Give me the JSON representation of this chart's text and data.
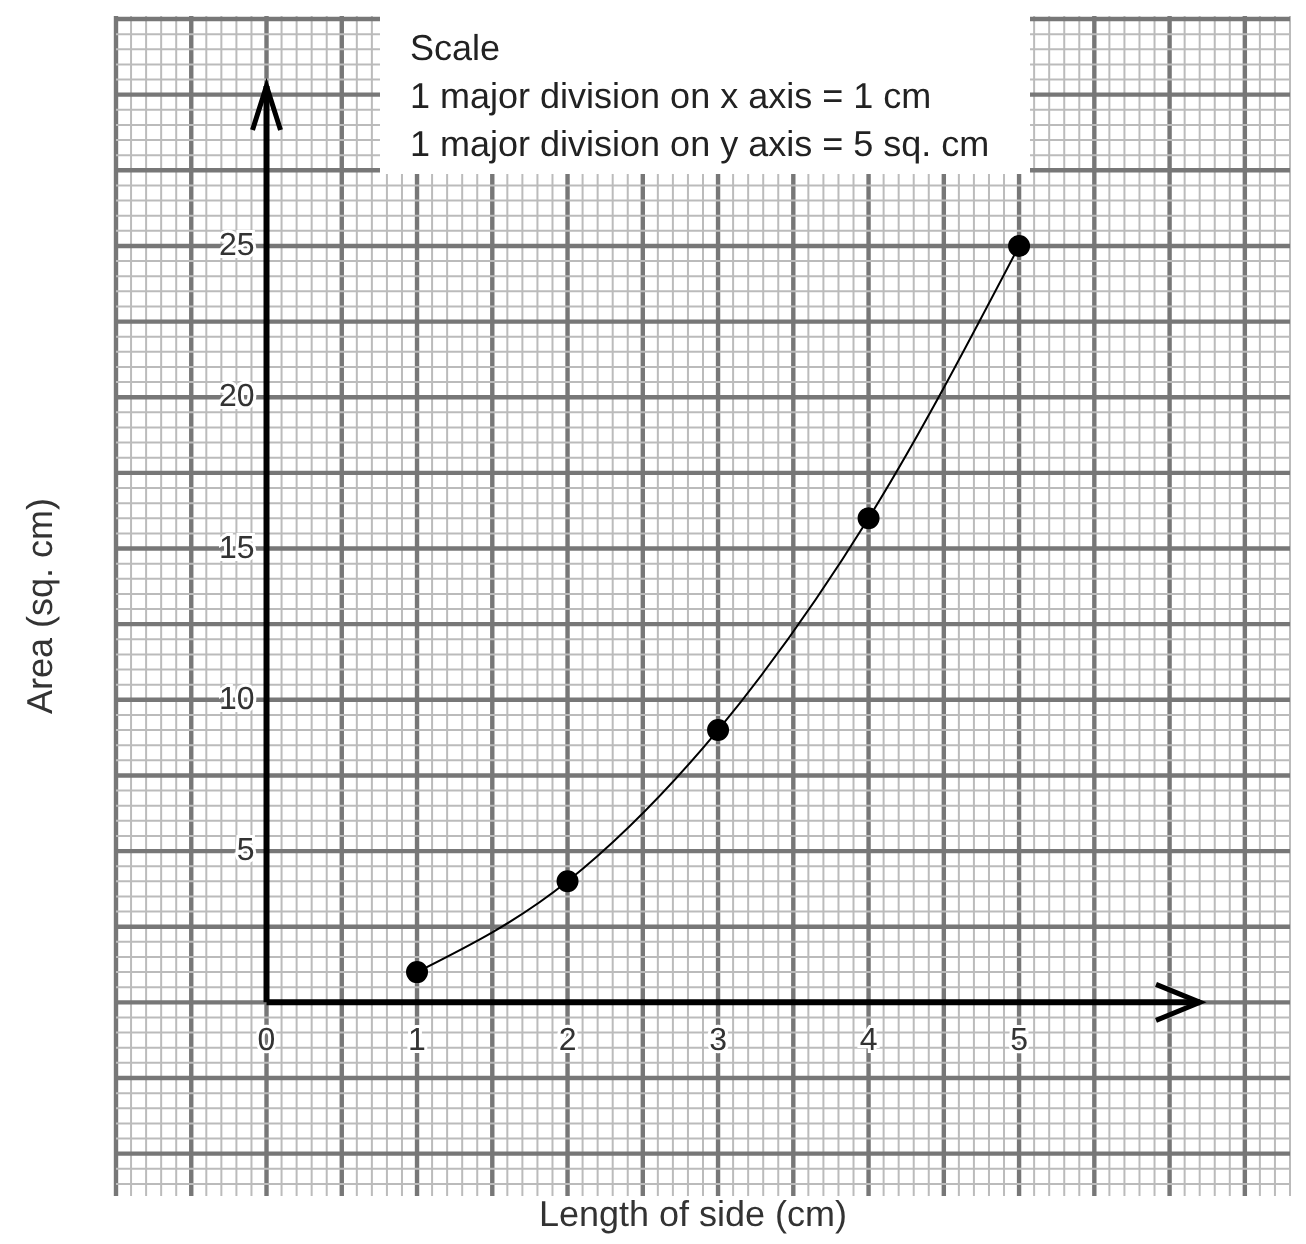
{
  "chart_data": {
    "type": "line",
    "xlabel": "Length of side (cm)",
    "ylabel": "Area (sq. cm)",
    "x": [
      1,
      2,
      3,
      4,
      5
    ],
    "series": [
      {
        "color": "#000000",
        "values": [
          1,
          4,
          9,
          16,
          25
        ]
      }
    ],
    "xlim": [
      -1,
      6.8
    ],
    "ylim": [
      -6.4,
      32.6
    ],
    "xticks": [
      0,
      1,
      2,
      3,
      4,
      5
    ],
    "yticks": [
      5,
      10,
      15,
      20,
      25
    ],
    "grid": true,
    "marker": "circle",
    "line_style": "solid",
    "annotations": [
      "Scale",
      "1 major division on x axis = 1 cm",
      "1 major division on y axis = 5 sq. cm"
    ]
  }
}
